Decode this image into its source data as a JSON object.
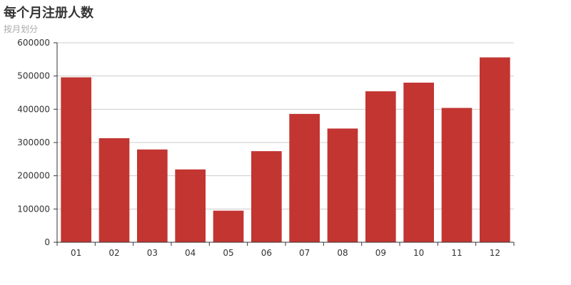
{
  "chart_data": {
    "type": "bar",
    "title": "每个月注册人数",
    "subtitle": "按月划分",
    "categories": [
      "01",
      "02",
      "03",
      "04",
      "05",
      "06",
      "07",
      "08",
      "09",
      "10",
      "11",
      "12"
    ],
    "series": [
      {
        "values": [
          496000,
          313000,
          279000,
          219000,
          95000,
          274000,
          386000,
          342000,
          454000,
          480000,
          404000,
          556000
        ]
      }
    ],
    "ylim": [
      0,
      600000
    ],
    "yticks": [
      "0",
      "100000",
      "200000",
      "300000",
      "400000",
      "500000",
      "600000"
    ],
    "grid": true,
    "bar_color": "#c23531",
    "grid_color": "#cccccc",
    "axis_color": "#333333"
  }
}
